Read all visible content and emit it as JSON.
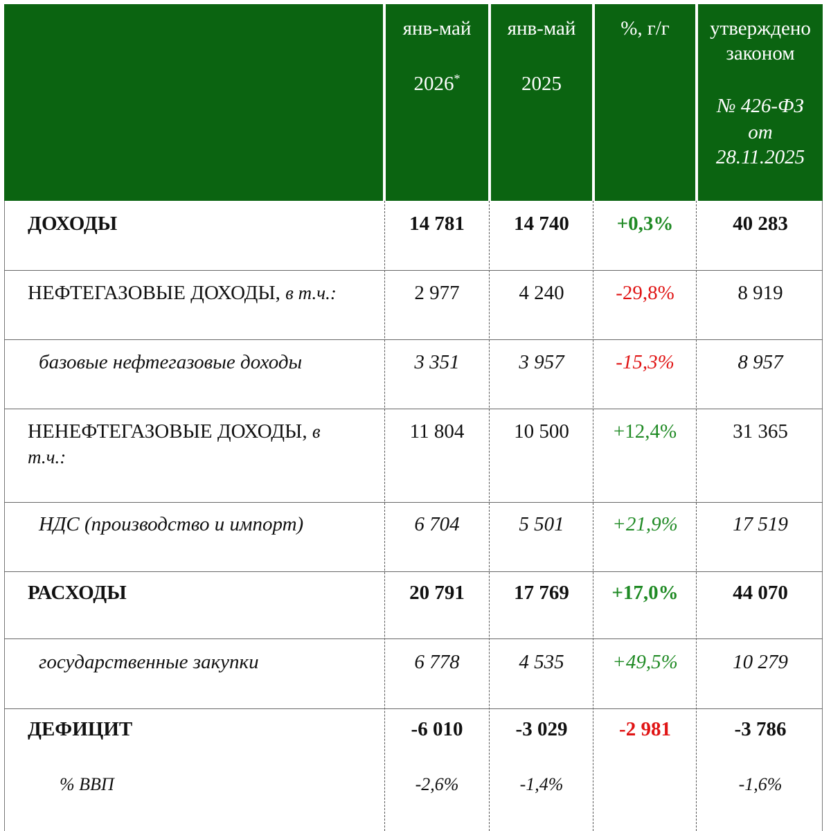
{
  "header": {
    "col0": "",
    "col1_line1": "янв-май",
    "col1_line2": "2026",
    "col1_mark": "*",
    "col2_line1": "янв-май",
    "col2_line2": "2025",
    "col3": "%, г/г",
    "col4_line1": "утверждено",
    "col4_line2": "законом",
    "col4_law1": "№ 426-ФЗ",
    "col4_law2": "от",
    "col4_law3": "28.11.2025"
  },
  "rows": [
    {
      "label": "ДОХОДЫ",
      "v2026": "14 781",
      "v2025": "14 740",
      "yoy": "+0,3%",
      "law": "40 283"
    },
    {
      "label": "НЕФТЕГАЗОВЫЕ ДОХОДЫ,",
      "label_note": "в т.ч.:",
      "v2026": "2 977",
      "v2025": "4 240",
      "yoy": "-29,8%",
      "law": "8 919"
    },
    {
      "label": "базовые нефтегазовые доходы",
      "v2026": "3 351",
      "v2025": "3 957",
      "yoy": "-15,3%",
      "law": "8 957"
    },
    {
      "label": "НЕНЕФТЕГАЗОВЫЕ ДОХОДЫ,",
      "label_note": "в",
      "label_note2": "т.ч.:",
      "v2026": "11 804",
      "v2025": "10 500",
      "yoy": "+12,4%",
      "law": "31 365"
    },
    {
      "label": "НДС (производство и импорт)",
      "v2026": "6 704",
      "v2025": "5 501",
      "yoy": "+21,9%",
      "law": "17 519"
    },
    {
      "label": "РАСХОДЫ",
      "v2026": "20 791",
      "v2025": "17 769",
      "yoy": "+17,0%",
      "law": "44 070"
    },
    {
      "label": "государственные закупки",
      "v2026": "6 778",
      "v2025": "4 535",
      "yoy": "+49,5%",
      "law": "10 279"
    },
    {
      "label": "ДЕФИЦИТ",
      "v2026": "-6 010",
      "v2025": "-3 029",
      "yoy": "-2 981",
      "law": "-3 786"
    },
    {
      "label": "% ВВП",
      "v2026": "-2,6%",
      "v2025": "-1,4%",
      "yoy": "",
      "law": "-1,6%"
    }
  ],
  "colors": {
    "header_bg": "#0b6411",
    "positive": "#1f8a24",
    "negative": "#e01414"
  }
}
